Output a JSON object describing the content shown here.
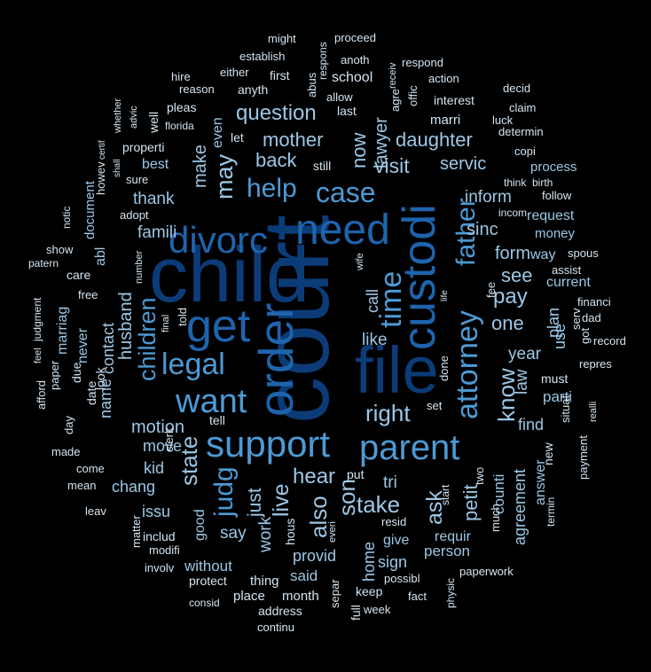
{
  "colors": {
    "background": "#000000",
    "tiers": [
      "#0b3c78",
      "#1e64ad",
      "#4d9ad4",
      "#9cc7e6",
      "#d4e5f2"
    ]
  },
  "words": [
    {
      "text": "court",
      "tier": 0
    },
    {
      "text": "child",
      "tier": 0
    },
    {
      "text": "file",
      "tier": 0
    },
    {
      "text": "order",
      "tier": 1
    },
    {
      "text": "custodi",
      "tier": 1
    },
    {
      "text": "get",
      "tier": 1
    },
    {
      "text": "need",
      "tier": 1
    },
    {
      "text": "divorc",
      "tier": 1
    },
    {
      "text": "support",
      "tier": 2
    },
    {
      "text": "parent",
      "tier": 2
    },
    {
      "text": "want",
      "tier": 2
    },
    {
      "text": "attorney",
      "tier": 2
    },
    {
      "text": "time",
      "tier": 2
    },
    {
      "text": "legal",
      "tier": 2
    },
    {
      "text": "case",
      "tier": 2
    },
    {
      "text": "help",
      "tier": 2
    },
    {
      "text": "father",
      "tier": 2
    },
    {
      "text": "children",
      "tier": 2
    },
    {
      "text": "judg",
      "tier": 2
    },
    {
      "text": "may",
      "tier": 3
    },
    {
      "text": "question",
      "tier": 3
    },
    {
      "text": "mother",
      "tier": 3
    },
    {
      "text": "daughter",
      "tier": 3
    },
    {
      "text": "visit",
      "tier": 3
    },
    {
      "text": "right",
      "tier": 3
    },
    {
      "text": "know",
      "tier": 3
    },
    {
      "text": "state",
      "tier": 3
    },
    {
      "text": "live",
      "tier": 3
    },
    {
      "text": "son",
      "tier": 3
    },
    {
      "text": "also",
      "tier": 3
    },
    {
      "text": "take",
      "tier": 3
    },
    {
      "text": "hear",
      "tier": 3
    },
    {
      "text": "petit",
      "tier": 3
    },
    {
      "text": "ask",
      "tier": 3
    },
    {
      "text": "husband",
      "tier": 3
    },
    {
      "text": "make",
      "tier": 3
    },
    {
      "text": "back",
      "tier": 3
    },
    {
      "text": "now",
      "tier": 3
    },
    {
      "text": "lawyer",
      "tier": 3
    },
    {
      "text": "form",
      "tier": 3
    },
    {
      "text": "sinc",
      "tier": 3
    },
    {
      "text": "pay",
      "tier": 3
    },
    {
      "text": "one",
      "tier": 3
    },
    {
      "text": "see",
      "tier": 3
    },
    {
      "text": "servic",
      "tier": 3
    },
    {
      "text": "inform",
      "tier": 3
    },
    {
      "text": "famili",
      "tier": 3
    },
    {
      "text": "thank",
      "tier": 3
    },
    {
      "text": "best",
      "tier": 3
    },
    {
      "text": "motion",
      "tier": 3
    },
    {
      "text": "move",
      "tier": 3
    },
    {
      "text": "like",
      "tier": 3
    },
    {
      "text": "call",
      "tier": 3
    },
    {
      "text": "year",
      "tier": 3
    },
    {
      "text": "law",
      "tier": 3
    },
    {
      "text": "tri",
      "tier": 3
    },
    {
      "text": "just",
      "tier": 3
    },
    {
      "text": "say",
      "tier": 3
    },
    {
      "text": "work",
      "tier": 3
    },
    {
      "text": "chang",
      "tier": 3
    },
    {
      "text": "issu",
      "tier": 3
    },
    {
      "text": "kid",
      "tier": 3
    },
    {
      "text": "contact",
      "tier": 3
    },
    {
      "text": "name",
      "tier": 3
    },
    {
      "text": "counti",
      "tier": 3
    },
    {
      "text": "agreement",
      "tier": 3
    },
    {
      "text": "answer",
      "tier": 3
    },
    {
      "text": "find",
      "tier": 3
    },
    {
      "text": "parti",
      "tier": 3
    },
    {
      "text": "use",
      "tier": 3
    },
    {
      "text": "plan",
      "tier": 3
    },
    {
      "text": "current",
      "tier": 3
    },
    {
      "text": "way",
      "tier": 3
    },
    {
      "text": "request",
      "tier": 3
    },
    {
      "text": "provid",
      "tier": 3
    },
    {
      "text": "home",
      "tier": 3
    },
    {
      "text": "sign",
      "tier": 3
    },
    {
      "text": "give",
      "tier": 3
    },
    {
      "text": "requir",
      "tier": 3
    },
    {
      "text": "person",
      "tier": 3
    },
    {
      "text": "said",
      "tier": 3
    },
    {
      "text": "without",
      "tier": 3
    },
    {
      "text": "good",
      "tier": 3
    },
    {
      "text": "even",
      "tier": 3
    },
    {
      "text": "never",
      "tier": 3
    },
    {
      "text": "marriag",
      "tier": 3
    },
    {
      "text": "abl",
      "tier": 3
    },
    {
      "text": "process",
      "tier": 3
    },
    {
      "text": "money",
      "tier": 3
    },
    {
      "text": "document",
      "tier": 3
    },
    {
      "text": "must",
      "tier": 4
    },
    {
      "text": "might",
      "tier": 4
    },
    {
      "text": "proceed",
      "tier": 4
    },
    {
      "text": "establish",
      "tier": 4
    },
    {
      "text": "abus",
      "tier": 4
    },
    {
      "text": "respons",
      "tier": 4
    },
    {
      "text": "anoth",
      "tier": 4
    },
    {
      "text": "receiv",
      "tier": 4
    },
    {
      "text": "respond",
      "tier": 4
    },
    {
      "text": "either",
      "tier": 4
    },
    {
      "text": "first",
      "tier": 4
    },
    {
      "text": "school",
      "tier": 4
    },
    {
      "text": "action",
      "tier": 4
    },
    {
      "text": "hire",
      "tier": 4
    },
    {
      "text": "reason",
      "tier": 4
    },
    {
      "text": "anyth",
      "tier": 4
    },
    {
      "text": "allow",
      "tier": 4
    },
    {
      "text": "agre",
      "tier": 4
    },
    {
      "text": "offic",
      "tier": 4
    },
    {
      "text": "interest",
      "tier": 4
    },
    {
      "text": "decid",
      "tier": 4
    },
    {
      "text": "pleas",
      "tier": 4
    },
    {
      "text": "last",
      "tier": 4
    },
    {
      "text": "claim",
      "tier": 4
    },
    {
      "text": "advic",
      "tier": 4
    },
    {
      "text": "whether",
      "tier": 4
    },
    {
      "text": "well",
      "tier": 4
    },
    {
      "text": "florida",
      "tier": 4
    },
    {
      "text": "marri",
      "tier": 4
    },
    {
      "text": "luck",
      "tier": 4
    },
    {
      "text": "determin",
      "tier": 4
    },
    {
      "text": "let",
      "tier": 4
    },
    {
      "text": "properti",
      "tier": 4
    },
    {
      "text": "still",
      "tier": 4
    },
    {
      "text": "copi",
      "tier": 4
    },
    {
      "text": "certif",
      "tier": 4
    },
    {
      "text": "sure",
      "tier": 4
    },
    {
      "text": "shall",
      "tier": 4
    },
    {
      "text": "think",
      "tier": 4
    },
    {
      "text": "birth",
      "tier": 4
    },
    {
      "text": "howev",
      "tier": 4
    },
    {
      "text": "follow",
      "tier": 4
    },
    {
      "text": "adopt",
      "tier": 4
    },
    {
      "text": "incom",
      "tier": 4
    },
    {
      "text": "notic",
      "tier": 4
    },
    {
      "text": "show",
      "tier": 4
    },
    {
      "text": "patern",
      "tier": 4
    },
    {
      "text": "number",
      "tier": 4
    },
    {
      "text": "wife",
      "tier": 4
    },
    {
      "text": "spous",
      "tier": 4
    },
    {
      "text": "care",
      "tier": 4
    },
    {
      "text": "assist",
      "tier": 4
    },
    {
      "text": "free",
      "tier": 4
    },
    {
      "text": "fee",
      "tier": 4
    },
    {
      "text": "life",
      "tier": 4
    },
    {
      "text": "financi",
      "tier": 4
    },
    {
      "text": "serv",
      "tier": 4
    },
    {
      "text": "dad",
      "tier": 4
    },
    {
      "text": "judgment",
      "tier": 4
    },
    {
      "text": "told",
      "tier": 4
    },
    {
      "text": "final",
      "tier": 4
    },
    {
      "text": "got",
      "tier": 4
    },
    {
      "text": "record",
      "tier": 4
    },
    {
      "text": "feel",
      "tier": 4
    },
    {
      "text": "look",
      "tier": 4
    },
    {
      "text": "repres",
      "tier": 4
    },
    {
      "text": "due",
      "tier": 4
    },
    {
      "text": "date",
      "tier": 4
    },
    {
      "text": "paper",
      "tier": 4
    },
    {
      "text": "afford",
      "tier": 4
    },
    {
      "text": "done",
      "tier": 4
    },
    {
      "text": "situat",
      "tier": 4
    },
    {
      "text": "realli",
      "tier": 4
    },
    {
      "text": "day",
      "tier": 4
    },
    {
      "text": "tell",
      "tier": 4
    },
    {
      "text": "clerk",
      "tier": 4
    },
    {
      "text": "set",
      "tier": 4
    },
    {
      "text": "made",
      "tier": 4
    },
    {
      "text": "new",
      "tier": 4
    },
    {
      "text": "payment",
      "tier": 4
    },
    {
      "text": "come",
      "tier": 4
    },
    {
      "text": "put",
      "tier": 4
    },
    {
      "text": "mean",
      "tier": 4
    },
    {
      "text": "start",
      "tier": 4
    },
    {
      "text": "two",
      "tier": 4
    },
    {
      "text": "much",
      "tier": 4
    },
    {
      "text": "termin",
      "tier": 4
    },
    {
      "text": "leav",
      "tier": 4
    },
    {
      "text": "resid",
      "tier": 4
    },
    {
      "text": "matter",
      "tier": 4
    },
    {
      "text": "hous",
      "tier": 4
    },
    {
      "text": "everi",
      "tier": 4
    },
    {
      "text": "includ",
      "tier": 4
    },
    {
      "text": "modifi",
      "tier": 4
    },
    {
      "text": "involv",
      "tier": 4
    },
    {
      "text": "paperwork",
      "tier": 4
    },
    {
      "text": "protect",
      "tier": 4
    },
    {
      "text": "thing",
      "tier": 4
    },
    {
      "text": "possibl",
      "tier": 4
    },
    {
      "text": "physic",
      "tier": 4
    },
    {
      "text": "place",
      "tier": 4
    },
    {
      "text": "month",
      "tier": 4
    },
    {
      "text": "separ",
      "tier": 4
    },
    {
      "text": "keep",
      "tier": 4
    },
    {
      "text": "fact",
      "tier": 4
    },
    {
      "text": "consid",
      "tier": 4
    },
    {
      "text": "address",
      "tier": 4
    },
    {
      "text": "full",
      "tier": 4
    },
    {
      "text": "week",
      "tier": 4
    },
    {
      "text": "continu",
      "tier": 4
    }
  ]
}
